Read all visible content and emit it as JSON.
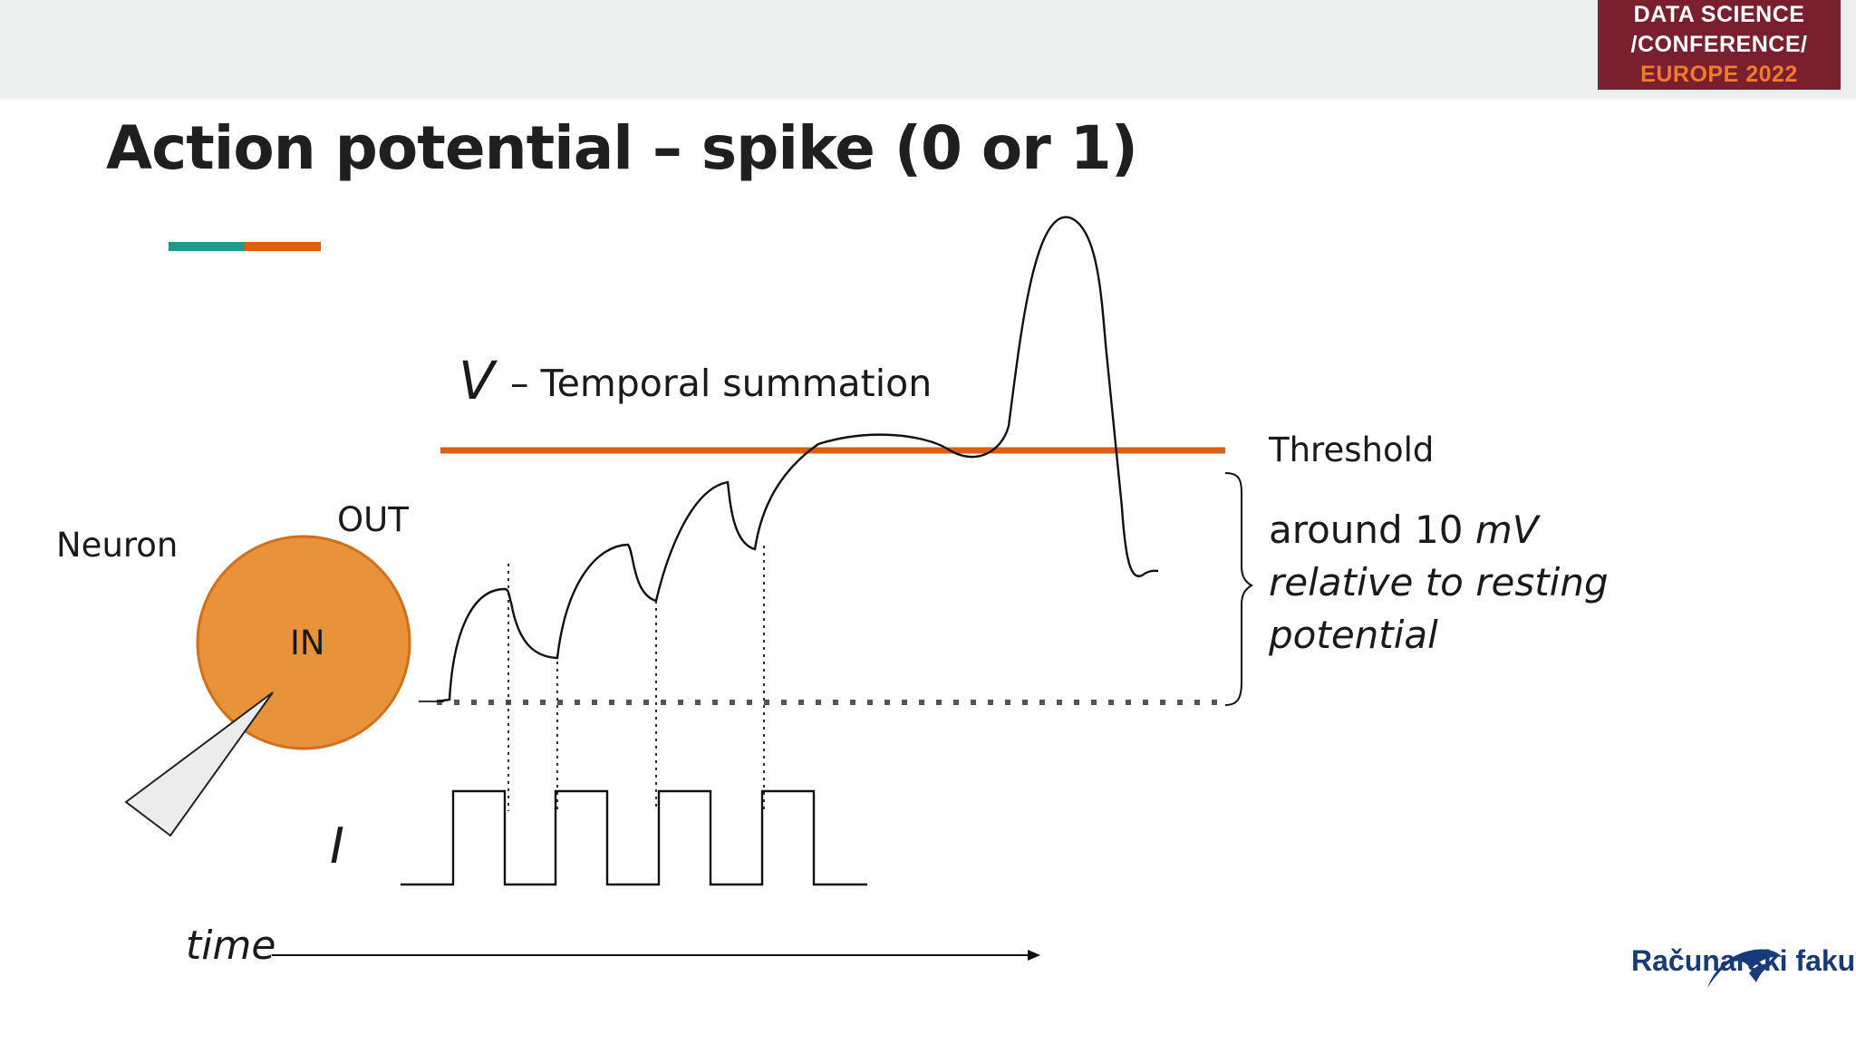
{
  "badge": {
    "line1": "DATA SCIENCE",
    "line2": "/CONFERENCE/",
    "line3": "EUROPE 2022"
  },
  "title": "Action potential – spike (0 or 1)",
  "diagram": {
    "v_symbol": "V",
    "v_label": "– Temporal summation",
    "threshold": "Threshold",
    "neuron": "Neuron",
    "out": "OUT",
    "in": "IN",
    "i_symbol": "I",
    "time": "time"
  },
  "note": {
    "line1_prefix": "around 10 ",
    "line1_unit": "mV",
    "line2": "relative to resting",
    "line3": "potential"
  },
  "logo": "Računarski fakultet",
  "colors": {
    "accent_orange": "#e05e12",
    "accent_teal": "#1f9a8a",
    "neuron_fill": "#e8923a",
    "badge_bg": "#7a1f2e",
    "logo_blue": "#173a78"
  }
}
